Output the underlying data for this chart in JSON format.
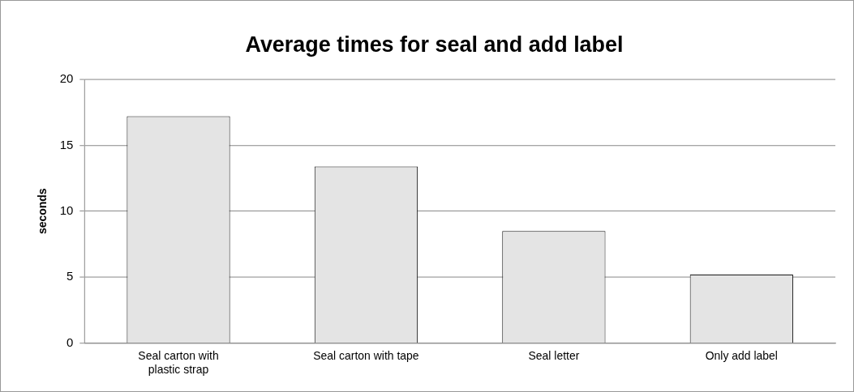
{
  "chart_data": {
    "type": "bar",
    "title": "Average times for seal and add label",
    "ylabel": "seconds",
    "categories": [
      "Seal carton with plastic strap",
      "Seal carton with tape",
      "Seal letter",
      "Only add label"
    ],
    "values": [
      17.2,
      13.4,
      8.5,
      5.2
    ],
    "color": "#e4e4e4",
    "ylim": [
      0,
      20
    ],
    "yticks": [
      0,
      5,
      10,
      15,
      20
    ],
    "grid": "y"
  }
}
